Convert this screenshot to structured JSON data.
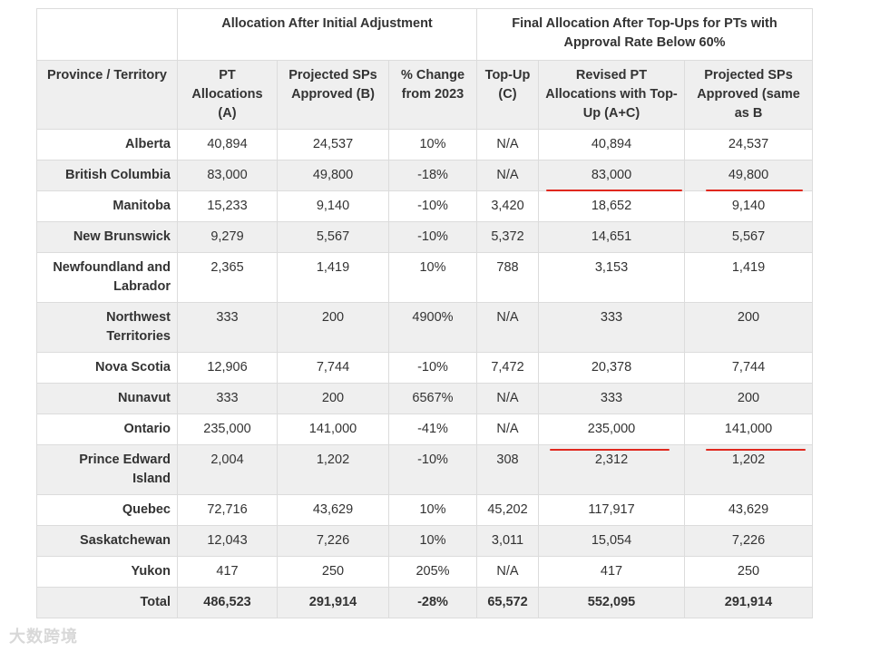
{
  "groups": {
    "initial": "Allocation After Initial Adjustment",
    "final": "Final Allocation After Top-Ups for PTs with Approval Rate Below 60%"
  },
  "columns": [
    "Province / Territory",
    "PT Allocations (A)",
    "Projected SPs Approved (B)",
    "% Change from 2023",
    "Top-Up (C)",
    "Revised PT Allocations with Top-Up (A+C)",
    "Projected SPs Approved (same as B"
  ],
  "rows": [
    [
      "Alberta",
      "40,894",
      "24,537",
      "10%",
      "N/A",
      "40,894",
      "24,537"
    ],
    [
      "British Columbia",
      "83,000",
      "49,800",
      "-18%",
      "N/A",
      "83,000",
      "49,800"
    ],
    [
      "Manitoba",
      "15,233",
      "9,140",
      "-10%",
      "3,420",
      "18,652",
      "9,140"
    ],
    [
      "New Brunswick",
      "9,279",
      "5,567",
      "-10%",
      "5,372",
      "14,651",
      "5,567"
    ],
    [
      "Newfoundland and Labrador",
      "2,365",
      "1,419",
      "10%",
      "788",
      "3,153",
      "1,419"
    ],
    [
      "Northwest Territories",
      "333",
      "200",
      "4900%",
      "N/A",
      "333",
      "200"
    ],
    [
      "Nova Scotia",
      "12,906",
      "7,744",
      "-10%",
      "7,472",
      "20,378",
      "7,744"
    ],
    [
      "Nunavut",
      "333",
      "200",
      "6567%",
      "N/A",
      "333",
      "200"
    ],
    [
      "Ontario",
      "235,000",
      "141,000",
      "-41%",
      "N/A",
      "235,000",
      "141,000"
    ],
    [
      "Prince Edward Island",
      "2,004",
      "1,202",
      "-10%",
      "308",
      "2,312",
      "1,202"
    ],
    [
      "Quebec",
      "72,716",
      "43,629",
      "10%",
      "45,202",
      "117,917",
      "43,629"
    ],
    [
      "Saskatchewan",
      "12,043",
      "7,226",
      "10%",
      "3,011",
      "15,054",
      "7,226"
    ],
    [
      "Yukon",
      "417",
      "250",
      "205%",
      "N/A",
      "417",
      "250"
    ]
  ],
  "total": [
    "Total",
    "486,523",
    "291,914",
    "-28%",
    "65,572",
    "552,095",
    "291,914"
  ],
  "watermark": "大数跨境",
  "colors": {
    "underline": "#e0281e",
    "stripe": "#efefef",
    "border": "#dcdcdc"
  }
}
